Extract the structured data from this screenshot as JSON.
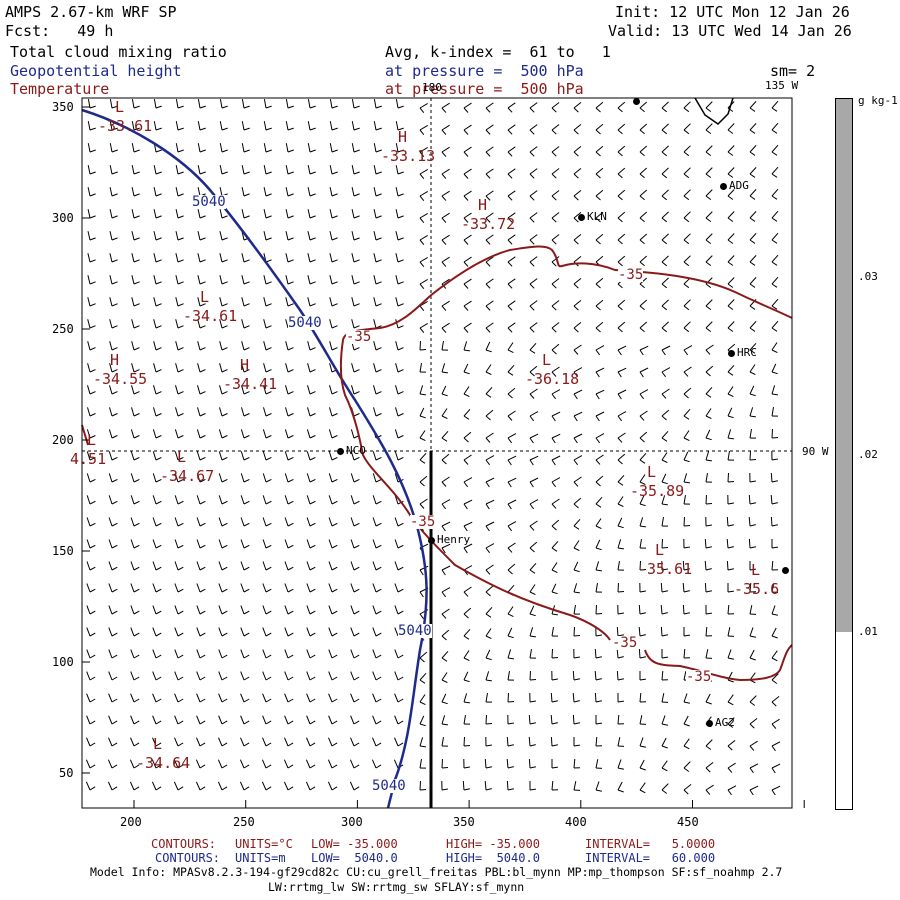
{
  "header": {
    "line1_left": "AMPS 2.67-km WRF SP",
    "line1_right": "Init: 12 UTC Mon 12 Jan 26",
    "line2_left": "Fcst:   49 h",
    "line2_right": "Valid: 13 UTC Wed 14 Jan 26",
    "field1": "Total cloud mixing ratio",
    "field1_info": "Avg, k-index =  61 to   1",
    "field2": "Geopotential height",
    "field2_info": "at pressure =  500 hPa",
    "field3": "Temperature",
    "field3_info": "at pressure =  500 hPa",
    "smoothing": "sm= 2"
  },
  "map": {
    "lon_labels": {
      "top": "180",
      "top_right": "135 W",
      "right": "90 W"
    },
    "x_ticks": [
      "200",
      "250",
      "300",
      "350",
      "400",
      "450"
    ],
    "y_ticks": [
      "350",
      "300",
      "250",
      "200",
      "150",
      "100",
      "50"
    ],
    "height_contour_labels": [
      "5040",
      "5040",
      "5040",
      "5040"
    ],
    "temperature_contour_labels": [
      "-35",
      "-35",
      "-35",
      "-35",
      "-35"
    ],
    "stations": [
      "ADG",
      "KLN",
      "HRC",
      "NCO",
      "Henry",
      "AG2"
    ],
    "extrema": [
      {
        "type": "H",
        "value": "-33.13"
      },
      {
        "type": "H",
        "value": "-33.72"
      },
      {
        "type": "L",
        "value": "-34.61"
      },
      {
        "type": "H",
        "value": "-34.55"
      },
      {
        "type": "H",
        "value": "-34.41"
      },
      {
        "type": "L",
        "value": "-36.18"
      },
      {
        "type": "L",
        "value": "-34.67"
      },
      {
        "type": "L",
        "value": "-35.89"
      },
      {
        "type": "L",
        "value": "-35.61"
      },
      {
        "type": "L",
        "value": "-35.6"
      },
      {
        "type": "L",
        "value": "-34.64"
      },
      {
        "type": "L",
        "value": "-33.61"
      },
      {
        "type": "L",
        "value": "4.51"
      }
    ]
  },
  "colorbar": {
    "unit": "g kg-1",
    "labels": [
      ".03",
      ".02",
      ".01"
    ],
    "fill_color": "#a8a8a8"
  },
  "footer": {
    "temp_line": {
      "contours": "CONTOURS:",
      "units": "UNITS=°C",
      "low": "LOW= -35.000",
      "high": "HIGH= -35.000",
      "interval": "INTERVAL=   5.0000"
    },
    "hgt_line": {
      "contours": "CONTOURS:",
      "units": "UNITS=m",
      "low": "LOW=  5040.0",
      "high": "HIGH=  5040.0",
      "interval": "INTERVAL=   60.000"
    },
    "model_info_1": "Model Info: MPASv8.2.3-194-gf29cd82c CU:cu_grell_freitas PBL:bl_mynn MP:mp_thompson SF:sf_noahmp 2.7",
    "model_info_2": "LW:rrtmg_lw SW:rrtmg_sw SFLAY:sf_mynn"
  },
  "colors": {
    "height": "#1e2a8c",
    "temperature": "#8a1a1a"
  }
}
